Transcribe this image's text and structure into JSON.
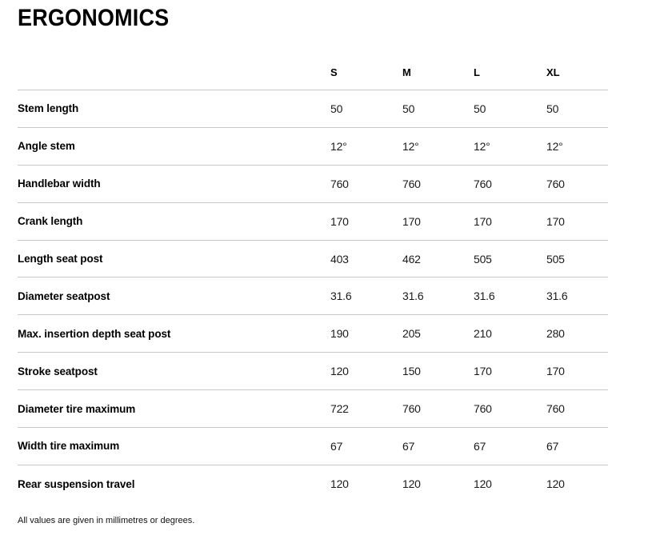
{
  "page": {
    "title": "ERGONOMICS",
    "footnote": "All values are given in millimetres or degrees."
  },
  "table": {
    "columns": [
      "S",
      "M",
      "L",
      "XL"
    ],
    "rows": [
      {
        "label": "Stem length",
        "values": [
          "50",
          "50",
          "50",
          "50"
        ]
      },
      {
        "label": "Angle stem",
        "values": [
          "12°",
          "12°",
          "12°",
          "12°"
        ]
      },
      {
        "label": "Handlebar width",
        "values": [
          "760",
          "760",
          "760",
          "760"
        ]
      },
      {
        "label": "Crank length",
        "values": [
          "170",
          "170",
          "170",
          "170"
        ]
      },
      {
        "label": "Length seat post",
        "values": [
          "403",
          "462",
          "505",
          "505"
        ]
      },
      {
        "label": "Diameter seatpost",
        "values": [
          "31.6",
          "31.6",
          "31.6",
          "31.6"
        ]
      },
      {
        "label": "Max. insertion depth seat post",
        "values": [
          "190",
          "205",
          "210",
          "280"
        ]
      },
      {
        "label": "Stroke seatpost",
        "values": [
          "120",
          "150",
          "170",
          "170"
        ]
      },
      {
        "label": "Diameter tire maximum",
        "values": [
          "722",
          "760",
          "760",
          "760"
        ]
      },
      {
        "label": "Width tire maximum",
        "values": [
          "67",
          "67",
          "67",
          "67"
        ]
      },
      {
        "label": "Rear suspension travel",
        "values": [
          "120",
          "120",
          "120",
          "120"
        ]
      }
    ]
  },
  "colors": {
    "text": "#000000",
    "value_text": "#1a1a1a",
    "divider": "#c9c9c9"
  }
}
